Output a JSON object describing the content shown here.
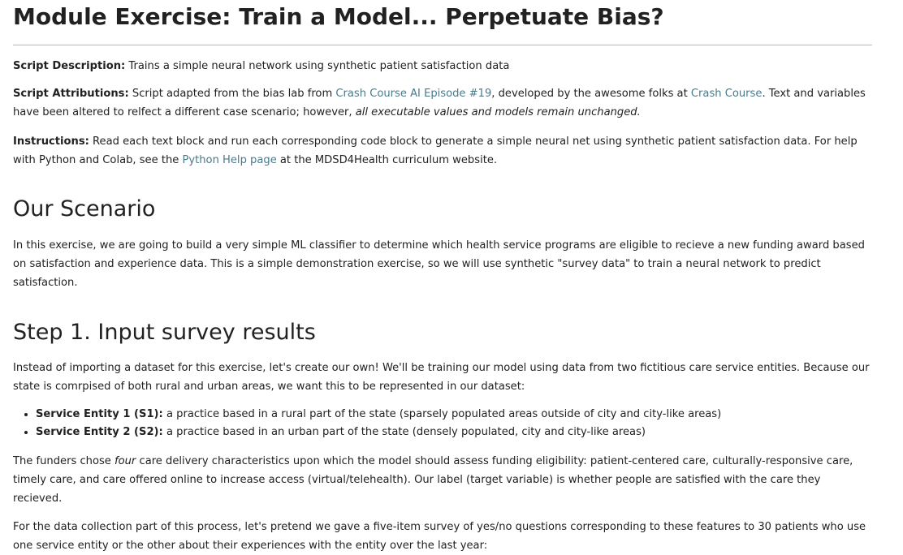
{
  "header": {
    "title": "Module Exercise: Train a Model... Perpetuate Bias?"
  },
  "intro": {
    "description": {
      "label": "Script Description:",
      "text": " Trains a simple neural network using synthetic patient satisfaction data"
    },
    "attributions": {
      "label": "Script Attributions:",
      "text1": " Script adapted from the bias lab from ",
      "link1": "Crash Course AI Episode #19",
      "text2": ", developed by the awesome folks at ",
      "link2": "Crash Course",
      "text3": ". Text and variables have been altered to relfect a different case scenario; however, ",
      "emphasis": "all executable values and models remain unchanged."
    },
    "instructions": {
      "label": "Instructions:",
      "text1": " Read each text block and run each corresponding code block to generate a simple neural net using synthetic patient satisfaction data. For help with Python and Colab, see the ",
      "link": "Python Help page",
      "text2": " at the MDSD4Health curriculum website."
    }
  },
  "scenario": {
    "heading": "Our Scenario",
    "text": "In this exercise, we are going to build a very simple ML classifier to determine which health service programs are eligible to recieve a new funding award based on satisfaction and experience data. This is a simple demonstration exercise, so we will use synthetic \"survey data\" to train a neural network to predict satisfaction."
  },
  "step1": {
    "heading": "Step 1. Input survey results",
    "intro": "Instead of importing a dataset for this exercise, let's create our own! We'll be training our model using data from two fictitious care service entities. Because our state is comrpised of both rural and urban areas, we want this to be represented in our dataset:",
    "entities": [
      {
        "label": "Service Entity 1 (S1):",
        "text": " a practice based in a rural part of the state (sparsely populated areas outside of city and city-like areas)"
      },
      {
        "label": "Service Entity 2 (S2):",
        "text": " a practice based in an urban part of the state (densely populated, city and city-like areas)"
      }
    ],
    "funders": {
      "text1": "The funders chose ",
      "emphasis": "four",
      "text2": " care delivery characteristics upon which the model should assess funding eligibility: patient-centered care, culturally-responsive care, timely care, and care offered online to increase access (virtual/telehealth). Our label (target variable) is whether people are satisfied with the care they recieved."
    },
    "collection": "For the data collection part of this process, let's pretend we gave a five-item survey of yes/no questions corresponding to these features to 30 patients who use one service entity or the other about their experiences with the entity over the last year:"
  },
  "colors": {
    "link": "#4a7a8a",
    "text": "#212121",
    "rule": "#b8b8b8"
  }
}
